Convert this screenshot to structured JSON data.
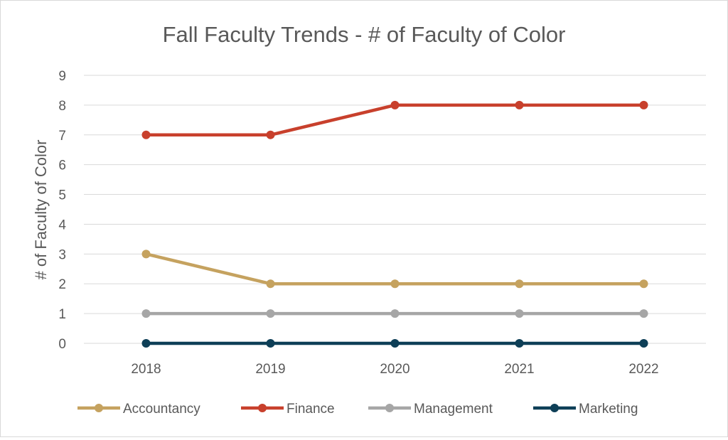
{
  "chart_data": {
    "type": "line",
    "title": "Fall Faculty Trends  - # of Faculty of Color",
    "xlabel": "",
    "ylabel": "# of Faculty of Color",
    "categories": [
      "2018",
      "2019",
      "2020",
      "2021",
      "2022"
    ],
    "ylim": [
      0,
      9
    ],
    "yticks": [
      0,
      1,
      2,
      3,
      4,
      5,
      6,
      7,
      8,
      9
    ],
    "grid": true,
    "legend_position": "bottom",
    "series": [
      {
        "name": "Accountancy",
        "color": "#c5a25f",
        "values": [
          3,
          2,
          2,
          2,
          2
        ]
      },
      {
        "name": "Finance",
        "color": "#c8402c",
        "values": [
          7,
          7,
          8,
          8,
          8
        ]
      },
      {
        "name": "Management",
        "color": "#a6a6a6",
        "values": [
          1,
          1,
          1,
          1,
          1
        ]
      },
      {
        "name": "Marketing",
        "color": "#0e3f57",
        "values": [
          0,
          0,
          0,
          0,
          0
        ]
      }
    ]
  }
}
